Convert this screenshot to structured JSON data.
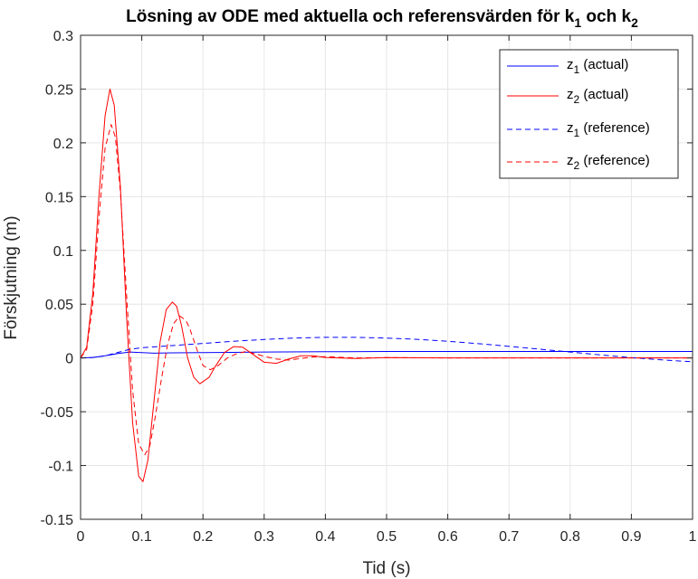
{
  "chart_data": {
    "type": "line",
    "title": "Lösning av ODE med aktuella och referensvärden för k",
    "title_sub1": "1",
    "title_mid": " och k",
    "title_sub2": "2",
    "xlabel": "Tid (s)",
    "ylabel": "Förskjutning (m)",
    "xlim": [
      0,
      1
    ],
    "ylim": [
      -0.15,
      0.3
    ],
    "xticks": [
      0,
      0.1,
      0.2,
      0.3,
      0.4,
      0.5,
      0.6,
      0.7,
      0.8,
      0.9,
      1
    ],
    "xtick_labels": [
      "0",
      "0.1",
      "0.2",
      "0.3",
      "0.4",
      "0.5",
      "0.6",
      "0.7",
      "0.8",
      "0.9",
      "1"
    ],
    "yticks": [
      -0.15,
      -0.1,
      -0.05,
      0,
      0.05,
      0.1,
      0.15,
      0.2,
      0.25,
      0.3
    ],
    "ytick_labels": [
      "-0.15",
      "-0.1",
      "-0.05",
      "0",
      "0.05",
      "0.1",
      "0.15",
      "0.2",
      "0.25",
      "0.3"
    ],
    "grid": true,
    "legend_position": "top-right",
    "series": [
      {
        "name": "z",
        "sub": "1",
        "suffix": " (actual)",
        "color": "#0000ff",
        "style": "solid",
        "x": [
          0,
          0.02,
          0.04,
          0.06,
          0.08,
          0.1,
          0.12,
          0.15,
          0.2,
          0.25,
          0.3,
          0.4,
          0.5,
          0.6,
          0.7,
          0.8,
          0.9,
          1.0
        ],
        "y": [
          0,
          0.0005,
          0.002,
          0.004,
          0.0055,
          0.005,
          0.0045,
          0.0048,
          0.005,
          0.0052,
          0.0055,
          0.0058,
          0.006,
          0.006,
          0.006,
          0.006,
          0.006,
          0.006
        ]
      },
      {
        "name": "z",
        "sub": "2",
        "suffix": " (actual)",
        "color": "#ff0000",
        "style": "solid",
        "x": [
          0,
          0.01,
          0.02,
          0.03,
          0.04,
          0.048,
          0.055,
          0.065,
          0.075,
          0.085,
          0.095,
          0.102,
          0.11,
          0.12,
          0.13,
          0.14,
          0.15,
          0.157,
          0.165,
          0.175,
          0.185,
          0.195,
          0.21,
          0.22,
          0.235,
          0.25,
          0.265,
          0.28,
          0.3,
          0.32,
          0.34,
          0.36,
          0.38,
          0.4,
          0.45,
          0.5,
          0.6,
          0.7,
          0.8,
          0.9,
          1.0
        ],
        "y": [
          0,
          0.01,
          0.06,
          0.15,
          0.225,
          0.25,
          0.235,
          0.16,
          0.04,
          -0.06,
          -0.11,
          -0.115,
          -0.095,
          -0.04,
          0.015,
          0.045,
          0.052,
          0.048,
          0.03,
          0.0,
          -0.018,
          -0.024,
          -0.018,
          -0.008,
          0.005,
          0.0105,
          0.01,
          0.004,
          -0.004,
          -0.005,
          -0.001,
          0.002,
          0.002,
          0.0005,
          -0.0005,
          0.0003,
          0.0,
          0.0,
          0.0,
          0.0,
          0.0
        ]
      },
      {
        "name": "z",
        "sub": "1",
        "suffix": " (reference)",
        "color": "#0000ff",
        "style": "dashed",
        "x": [
          0,
          0.02,
          0.04,
          0.06,
          0.08,
          0.1,
          0.15,
          0.2,
          0.25,
          0.3,
          0.35,
          0.4,
          0.45,
          0.5,
          0.55,
          0.6,
          0.65,
          0.7,
          0.75,
          0.8,
          0.85,
          0.9,
          0.95,
          1.0
        ],
        "y": [
          0,
          0.0005,
          0.002,
          0.005,
          0.008,
          0.0095,
          0.0115,
          0.0135,
          0.0155,
          0.0172,
          0.0185,
          0.0192,
          0.0192,
          0.0185,
          0.0173,
          0.0155,
          0.0133,
          0.0108,
          0.0082,
          0.0055,
          0.0028,
          0.0003,
          -0.0018,
          -0.0035
        ]
      },
      {
        "name": "z",
        "sub": "2",
        "suffix": " (reference)",
        "color": "#ff0000",
        "style": "dashed",
        "x": [
          0,
          0.01,
          0.02,
          0.03,
          0.04,
          0.05,
          0.057,
          0.065,
          0.075,
          0.085,
          0.095,
          0.105,
          0.113,
          0.122,
          0.132,
          0.142,
          0.152,
          0.162,
          0.172,
          0.178,
          0.19,
          0.2,
          0.212,
          0.225,
          0.24,
          0.255,
          0.27,
          0.285,
          0.3,
          0.32,
          0.34,
          0.36,
          0.38,
          0.4,
          0.45,
          0.5,
          0.6,
          0.7,
          0.8,
          0.9,
          1.0
        ],
        "y": [
          0,
          0.008,
          0.05,
          0.13,
          0.195,
          0.217,
          0.205,
          0.155,
          0.06,
          -0.03,
          -0.08,
          -0.09,
          -0.082,
          -0.055,
          -0.02,
          0.012,
          0.032,
          0.039,
          0.035,
          0.028,
          0.008,
          -0.007,
          -0.011,
          -0.007,
          0.0,
          0.004,
          0.006,
          0.004,
          0.0015,
          -0.001,
          -0.002,
          -0.0005,
          0.001,
          0.0012,
          0.0,
          0.0003,
          0.0,
          0.0,
          0.0,
          0.0,
          0.0
        ]
      }
    ]
  }
}
